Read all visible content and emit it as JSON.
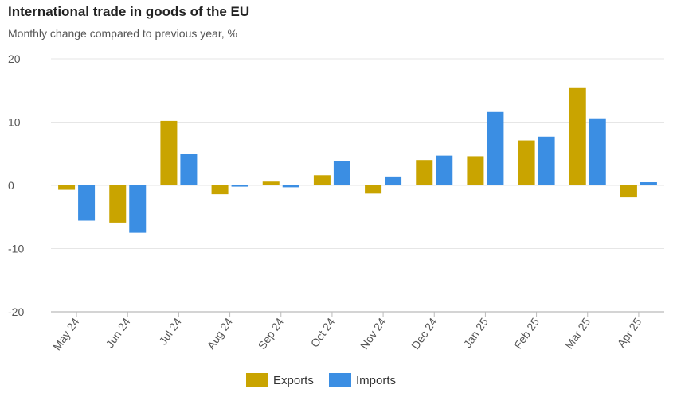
{
  "chart_data": {
    "type": "bar",
    "title": "International trade in goods of the EU",
    "subtitle": "Monthly change compared to previous year, %",
    "categories": [
      "May 24",
      "Jun 24",
      "Jul 24",
      "Aug 24",
      "Sep 24",
      "Oct 24",
      "Nov 24",
      "Dec 24",
      "Jan 25",
      "Feb 25",
      "Mar 25",
      "Apr 25"
    ],
    "series": [
      {
        "name": "Exports",
        "color": "#c9a400",
        "values": [
          -0.7,
          -5.9,
          10.2,
          -1.4,
          0.6,
          1.6,
          -1.3,
          4.0,
          4.6,
          7.1,
          15.5,
          -1.9
        ]
      },
      {
        "name": "Imports",
        "color": "#3b8ee3",
        "values": [
          -5.6,
          -7.5,
          5.0,
          -0.2,
          -0.3,
          3.8,
          1.4,
          4.7,
          11.6,
          7.7,
          10.6,
          0.5
        ]
      }
    ],
    "ylim": [
      -20,
      20
    ],
    "yticks": [
      20,
      10,
      0,
      -10,
      -20
    ],
    "grid": true,
    "legend": "bottom-center"
  }
}
